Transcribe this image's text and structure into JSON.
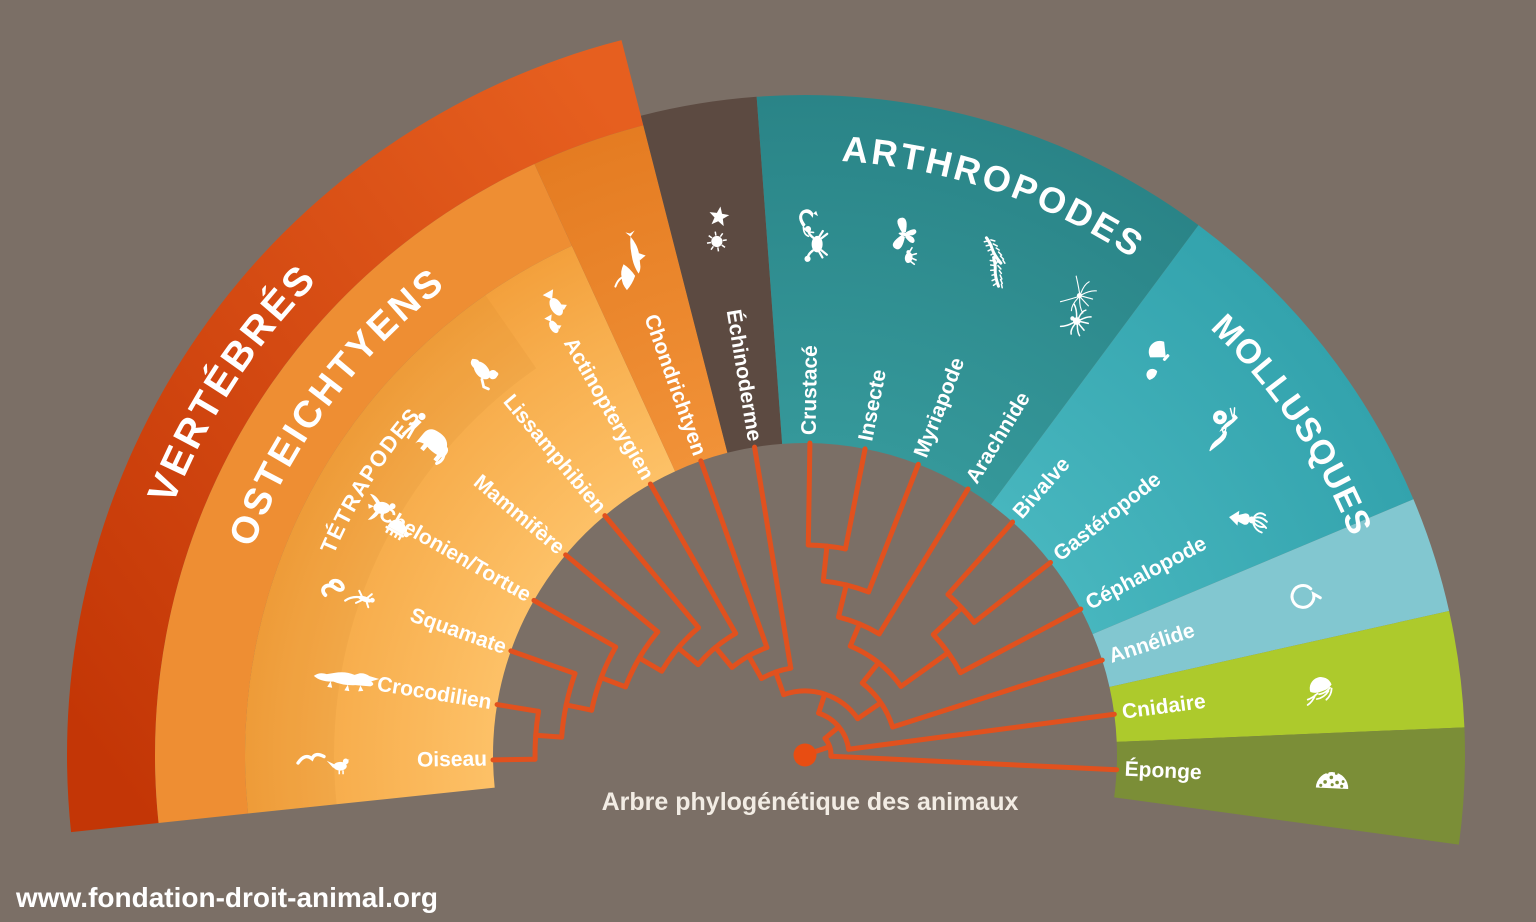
{
  "caption": "Arbre phylogénétique des animaux",
  "footer_url": "www.fondation-droit-animal.org",
  "colors": {
    "background": "#7b6f66",
    "vertebres_start": "#e65f1f",
    "vertebres_end": "#c33606",
    "osteichtyens": "#ee8e33",
    "segments_inner": "#fdc167",
    "segments_mid": "#f7ad4c",
    "segments_outer": "#f3a03c",
    "tetrapodes_shade": "#c97a1e",
    "chondrichtyen_inner": "#f19238",
    "chondrichtyen_outer": "#e47b21",
    "echinoderme": "#5c4a41",
    "arthropodes_inner": "#35989a",
    "arthropodes_outer": "#2a8487",
    "mollusques_inner": "#47b6be",
    "mollusques_outer": "#33a3ad",
    "annelide": "#82c7d0",
    "cnidaire": "#adca2c",
    "eponge": "#7b8e37",
    "tree_branch": "#e1511e",
    "root_dot": "#e84d12",
    "label_text": "#ffffff",
    "icon": "#ffffff"
  },
  "bands": [
    {
      "id": "vertebres",
      "label": "VERTÉBRÉS"
    },
    {
      "id": "osteichtyens",
      "label": "OSTEICHTYENS"
    },
    {
      "id": "tetrapodes",
      "label": "TÉTRAPODES"
    },
    {
      "id": "arthropodes",
      "label": "ARTHROPODES"
    },
    {
      "id": "mollusques",
      "label": "MOLLUSQUES"
    }
  ],
  "taxa": [
    {
      "id": "oiseau",
      "label": "Oiseau",
      "icons": [
        "flying-bird-icon",
        "songbird-icon"
      ]
    },
    {
      "id": "crocodilien",
      "label": "Crocodilien",
      "icons": [
        "crocodile-icon"
      ]
    },
    {
      "id": "squamate",
      "label": "Squamate",
      "icons": [
        "snake-icon",
        "lizard-icon"
      ]
    },
    {
      "id": "chelonien",
      "label": "Chelonien/Tortue",
      "icons": [
        "sea-turtle-icon",
        "tortoise-icon"
      ]
    },
    {
      "id": "mammifere",
      "label": "Mammifère",
      "icons": [
        "human-icon",
        "elephant-icon"
      ]
    },
    {
      "id": "lissamphibien",
      "label": "Lissamphibien",
      "icons": [
        "frog-icon"
      ]
    },
    {
      "id": "actinopterygien",
      "label": "Actinopterygien",
      "icons": [
        "fish-icon",
        "fish-icon"
      ]
    },
    {
      "id": "chondrichtyen",
      "label": "Chondrichtyen",
      "icons": [
        "shark-icon",
        "ray-icon"
      ]
    },
    {
      "id": "echinoderme",
      "label": "Échinoderme",
      "icons": [
        "starfish-icon",
        "sea-urchin-icon"
      ]
    },
    {
      "id": "crustace",
      "label": "Crustacé",
      "icons": [
        "crab-icon",
        "shrimp-icon"
      ]
    },
    {
      "id": "insecte",
      "label": "Insecte",
      "icons": [
        "flea-icon",
        "butterfly-icon"
      ]
    },
    {
      "id": "myriapode",
      "label": "Myriapode",
      "icons": [
        "centipede-icon",
        "centipede-icon"
      ]
    },
    {
      "id": "arachnide",
      "label": "Arachnide",
      "icons": [
        "spider-icon",
        "harvestman-icon"
      ]
    },
    {
      "id": "bivalve",
      "label": "Bivalve",
      "icons": [
        "clam-icon",
        "scallop-icon"
      ]
    },
    {
      "id": "gasteropode",
      "label": "Gastéropode",
      "icons": [
        "slug-icon",
        "snail-icon"
      ]
    },
    {
      "id": "cephalopode",
      "label": "Céphalopode",
      "icons": [
        "squid-icon"
      ]
    },
    {
      "id": "annelide",
      "label": "Annélide",
      "icons": [
        "worm-icon"
      ]
    },
    {
      "id": "cnidaire",
      "label": "Cnidaire",
      "icons": [
        "jellyfish-icon"
      ]
    },
    {
      "id": "eponge",
      "label": "Éponge",
      "icons": [
        "sponge-icon"
      ]
    }
  ],
  "tree": {
    "r": 26,
    "children": [
      {
        "taxon": "eponge"
      },
      {
        "r": 44,
        "children": [
          {
            "taxon": "cnidaire"
          },
          {
            "r": 64,
            "children": [
              {
                "r": 88,
                "children": [
                  {
                    "r": 114,
                    "children": [
                      {
                        "r": 140,
                        "children": [
                          {
                            "r": 166,
                            "children": [
                              {
                                "r": 192,
                                "children": [
                                  {
                                    "r": 218,
                                    "children": [
                                      {
                                        "r": 244,
                                        "children": [
                                          {
                                            "r": 270,
                                            "children": [
                                              {
                                                "taxon": "oiseau"
                                              },
                                              {
                                                "taxon": "crocodilien"
                                              }
                                            ]
                                          },
                                          {
                                            "taxon": "squamate"
                                          }
                                        ]
                                      },
                                      {
                                        "taxon": "chelonien"
                                      }
                                    ]
                                  },
                                  {
                                    "taxon": "mammifere"
                                  }
                                ]
                              },
                              {
                                "taxon": "lissamphibien"
                              }
                            ]
                          },
                          {
                            "taxon": "actinopterygien"
                          }
                        ]
                      },
                      {
                        "taxon": "chondrichtyen"
                      }
                    ]
                  },
                  {
                    "taxon": "echinoderme"
                  }
                ]
              },
              {
                "r": 92,
                "children": [
                  {
                    "r": 118,
                    "children": [
                      {
                        "r": 142,
                        "children": [
                          {
                            "r": 175,
                            "children": [
                              {
                                "r": 210,
                                "children": [
                                  {
                                    "taxon": "crustace"
                                  },
                                  {
                                    "taxon": "insecte"
                                  }
                                ]
                              },
                              {
                                "taxon": "myriapode"
                              }
                            ]
                          },
                          {
                            "taxon": "arachnide"
                          }
                        ]
                      },
                      {
                        "r": 176,
                        "children": [
                          {
                            "r": 215,
                            "children": [
                              {
                                "taxon": "bivalve"
                              },
                              {
                                "taxon": "gasteropode"
                              }
                            ]
                          },
                          {
                            "taxon": "cephalopode"
                          }
                        ]
                      }
                    ]
                  },
                  {
                    "taxon": "annelide"
                  }
                ]
              }
            ]
          }
        ]
      }
    ]
  }
}
